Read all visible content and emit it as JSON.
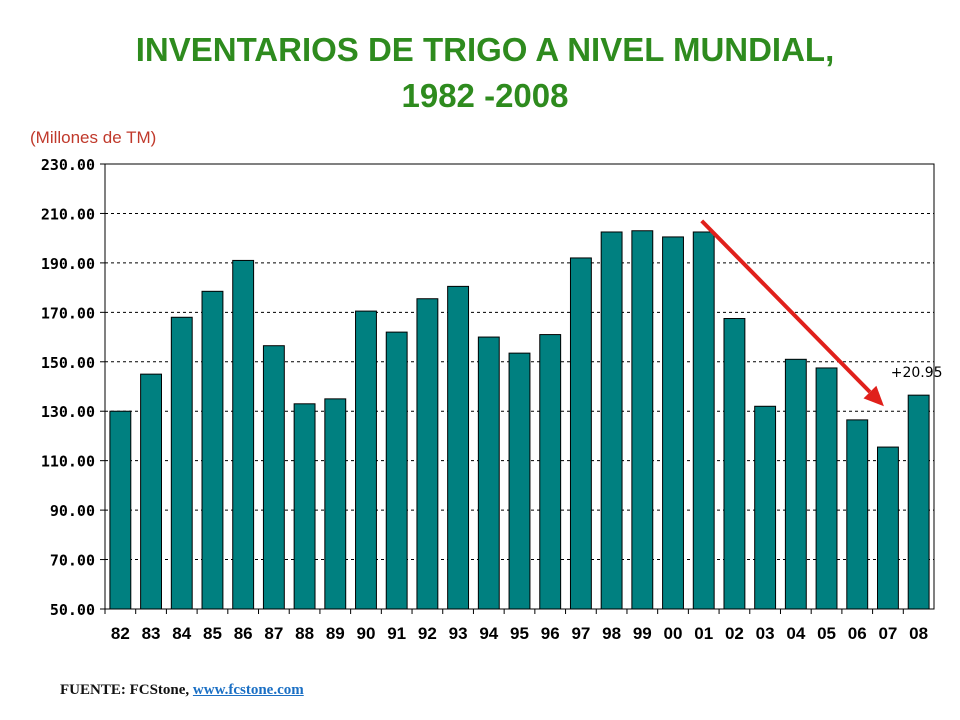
{
  "title_line1": "INVENTARIOS  DE TRIGO A NIVEL MUNDIAL,",
  "title_line2": "1982 -2008",
  "units": "(Millones de TM)",
  "source_label": "FUENTE: FCStone,",
  "source_link": "www.fcstone.com",
  "colors": {
    "bar": "#008080",
    "title": "#2e8b1e",
    "arrow": "#e0201b",
    "units": "#c0392b"
  },
  "chart_data": {
    "type": "bar",
    "categories": [
      "82",
      "83",
      "84",
      "85",
      "86",
      "87",
      "88",
      "89",
      "90",
      "91",
      "92",
      "93",
      "94",
      "95",
      "96",
      "97",
      "98",
      "99",
      "00",
      "01",
      "02",
      "03",
      "04",
      "05",
      "06",
      "07",
      "08"
    ],
    "values": [
      130.0,
      145.0,
      168.0,
      178.5,
      191.0,
      156.5,
      133.0,
      135.0,
      170.5,
      162.0,
      175.5,
      180.5,
      160.0,
      153.5,
      161.0,
      192.0,
      202.5,
      203.0,
      200.5,
      202.5,
      167.5,
      132.0,
      151.0,
      147.5,
      126.5,
      115.5,
      136.5
    ],
    "yticks": [
      "50.00",
      "70.00",
      "90.00",
      "110.00",
      "130.00",
      "150.00",
      "170.00",
      "190.00",
      "210.00",
      "230.00"
    ],
    "ylim": [
      50,
      230
    ],
    "grid": "horizontal dashed",
    "annotation": {
      "text": "+20.95",
      "near_category": "08"
    },
    "arrow": {
      "from_category": "01",
      "from_value": 207,
      "to_category": "07",
      "to_value": 132
    }
  }
}
